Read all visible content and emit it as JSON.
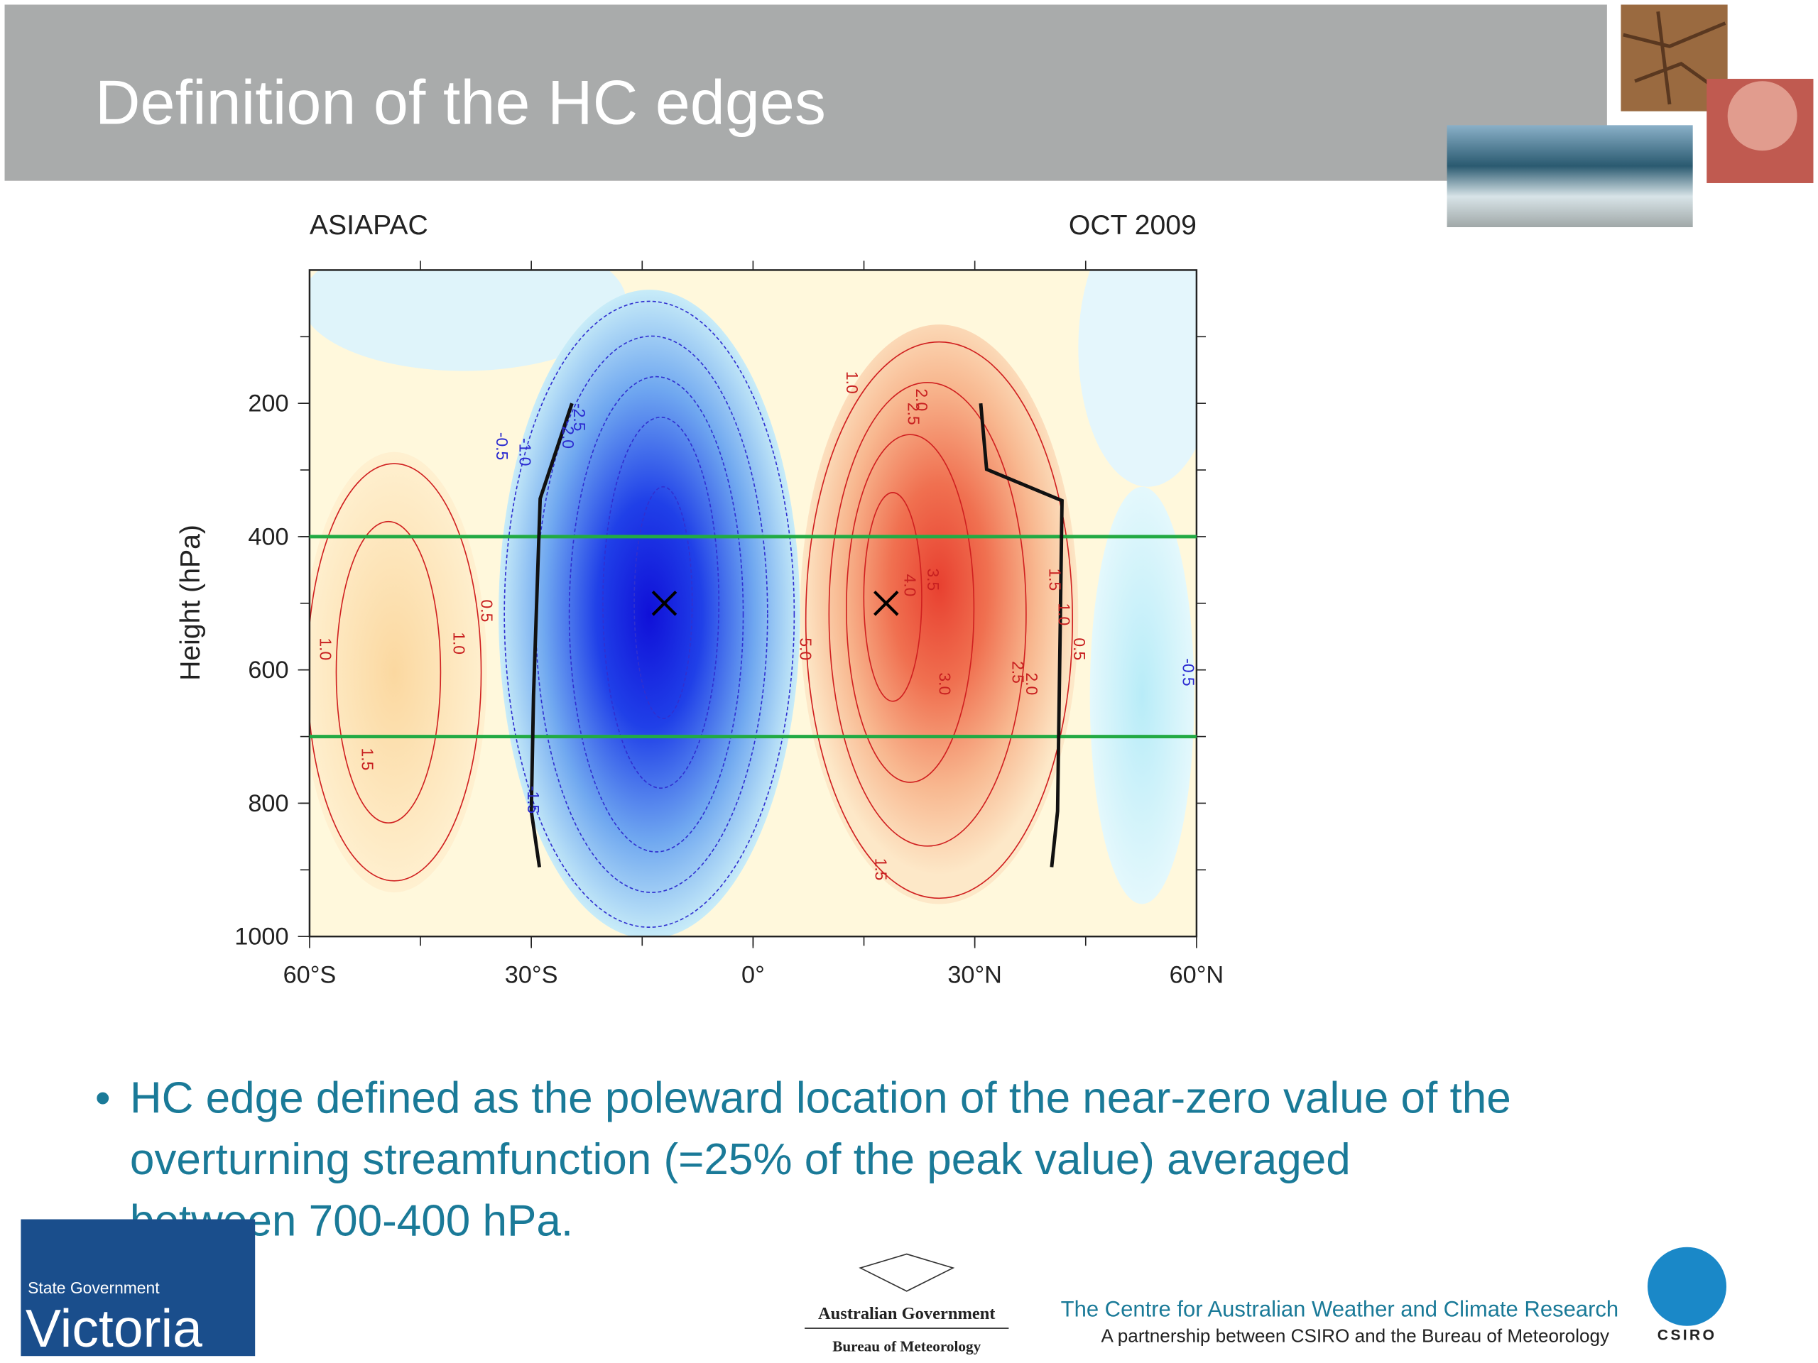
{
  "header": {
    "title": "Definition of the HC edges"
  },
  "chart": {
    "type": "contour",
    "title_left": "ASIAPAC",
    "title_right": "OCT 2009",
    "y_label": "Height (hPa)",
    "xlim": [
      -60,
      60
    ],
    "xticks": [
      {
        "value": -60,
        "label": "60°S"
      },
      {
        "value": -30,
        "label": "30°S"
      },
      {
        "value": 0,
        "label": "0°"
      },
      {
        "value": 30,
        "label": "30°N"
      },
      {
        "value": 60,
        "label": "60°N"
      }
    ],
    "ylim": [
      1000,
      0
    ],
    "yticks": [
      200,
      400,
      600,
      800,
      1000
    ],
    "levels": {
      "color": "#22aa44",
      "values": [
        400,
        700
      ]
    },
    "maxima": {
      "x": [
        -12,
        18
      ],
      "y": [
        500,
        500
      ]
    },
    "edges": [
      {
        "x": [
          -24.5,
          -28.8,
          -29.7,
          -30.0,
          -28.9
        ],
        "y": [
          200,
          343,
          638,
          812,
          896
        ]
      },
      {
        "x": [
          30.8,
          31.6,
          41.8,
          41.2,
          40.4
        ],
        "y": [
          200,
          299,
          346,
          812,
          896
        ]
      }
    ],
    "contour_labels": [
      "1.0",
      "1.5",
      "1.0",
      "0.5",
      "-0.5",
      "-1.0",
      "-2.0",
      "-2.5",
      "-1.5",
      "5.0",
      "1.0",
      "2.0",
      "2.5",
      "3.5",
      "4.0",
      "3.0",
      "2.5",
      "2.0",
      "1.5",
      "1.0",
      "0.5",
      "1.5",
      "-0.5"
    ]
  },
  "bullet": "HC edge defined as the poleward location of the near-zero value of the overturning streamfunction (=25% of the peak value) averaged between 700-400 hPa.",
  "footer": {
    "victoria_small": "State Government",
    "victoria": "Victoria",
    "gov": "Australian Government",
    "bom": "Bureau of Meteorology",
    "centre": "The Centre for Australian Weather and Climate Research",
    "partnership": "A partnership between CSIRO and the Bureau of Meteorology",
    "csiro": "CSIRO"
  }
}
